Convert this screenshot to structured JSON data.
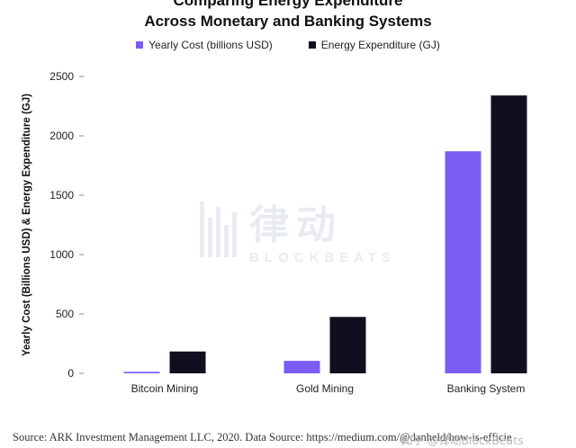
{
  "title_line1": "Comparing Energy Expenditure",
  "title_line2": "Across Monetary and Banking Systems",
  "legend": [
    {
      "label": "Yearly Cost (billions USD)",
      "color": "#7b5cf5"
    },
    {
      "label": "Energy Expenditure (GJ)",
      "color": "#120d1f"
    }
  ],
  "watermark": {
    "cn": "律动",
    "en": "BLOCKBEATS"
  },
  "source": "Source: ARK Investment Management LLC, 2020. Data Source: https://medium.com/@danheld/how-is-efficie",
  "corner_mark": "知乎 @律动BlockBeats",
  "chart_data": {
    "type": "bar",
    "categories": [
      "Bitcoin Mining",
      "Gold Mining",
      "Banking System"
    ],
    "series": [
      {
        "name": "Yearly Cost (billions USD)",
        "color": "#7b5cf5",
        "values": [
          13,
          105,
          1870
        ]
      },
      {
        "name": "Energy Expenditure (GJ)",
        "color": "#120d1f",
        "values": [
          184,
          475,
          2340
        ]
      }
    ],
    "ylabel": "Yearly Cost (Billions USD) & Energy Expenditure (GJ)",
    "xlabel": "",
    "ylim": [
      0,
      2500
    ],
    "yticks": [
      0,
      500,
      1000,
      1500,
      2000,
      2500
    ],
    "grid": false,
    "legend_position": "top-center"
  }
}
